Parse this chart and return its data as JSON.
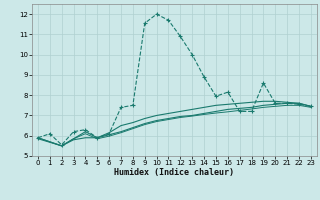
{
  "xlabel": "Humidex (Indice chaleur)",
  "bg_color": "#cce8e8",
  "grid_color": "#b0d0d0",
  "line_color": "#1a7a6e",
  "xlim": [
    -0.5,
    23.5
  ],
  "ylim": [
    5,
    12.5
  ],
  "xticks": [
    0,
    1,
    2,
    3,
    4,
    5,
    6,
    7,
    8,
    9,
    10,
    11,
    12,
    13,
    14,
    15,
    16,
    17,
    18,
    19,
    20,
    21,
    22,
    23
  ],
  "yticks": [
    5,
    6,
    7,
    8,
    9,
    10,
    11,
    12
  ],
  "line1_x": [
    0,
    1,
    2,
    3,
    4,
    5,
    6,
    7,
    8,
    9,
    10,
    11,
    12,
    13,
    14,
    15,
    16,
    17,
    18,
    19,
    20,
    21,
    22,
    23
  ],
  "line1_y": [
    5.9,
    6.1,
    5.55,
    6.2,
    6.3,
    5.9,
    6.1,
    7.4,
    7.5,
    11.55,
    12.0,
    11.7,
    10.9,
    10.0,
    8.9,
    7.95,
    8.15,
    7.2,
    7.2,
    8.6,
    7.6,
    7.6,
    7.55,
    7.45
  ],
  "line2_x": [
    0,
    2,
    3,
    4,
    5,
    6,
    7,
    8,
    9,
    10,
    11,
    12,
    13,
    14,
    15,
    16,
    17,
    18,
    19,
    20,
    21,
    22,
    23
  ],
  "line2_y": [
    5.9,
    5.5,
    5.8,
    5.9,
    5.9,
    6.05,
    6.2,
    6.4,
    6.6,
    6.75,
    6.85,
    6.95,
    7.0,
    7.1,
    7.2,
    7.3,
    7.35,
    7.4,
    7.5,
    7.55,
    7.6,
    7.6,
    7.45
  ],
  "line3_x": [
    0,
    2,
    3,
    4,
    5,
    6,
    7,
    8,
    9,
    10,
    11,
    12,
    13,
    14,
    15,
    16,
    17,
    18,
    19,
    20,
    21,
    22,
    23
  ],
  "line3_y": [
    5.9,
    5.5,
    5.85,
    6.2,
    5.9,
    6.15,
    6.5,
    6.65,
    6.85,
    7.0,
    7.1,
    7.2,
    7.3,
    7.4,
    7.5,
    7.55,
    7.6,
    7.65,
    7.7,
    7.7,
    7.65,
    7.6,
    7.45
  ],
  "line4_x": [
    0,
    2,
    3,
    4,
    5,
    6,
    7,
    8,
    9,
    10,
    11,
    12,
    13,
    14,
    15,
    16,
    17,
    18,
    19,
    20,
    21,
    22,
    23
  ],
  "line4_y": [
    5.85,
    5.5,
    5.85,
    6.1,
    5.85,
    5.98,
    6.15,
    6.35,
    6.55,
    6.7,
    6.8,
    6.9,
    6.97,
    7.05,
    7.12,
    7.18,
    7.25,
    7.32,
    7.4,
    7.45,
    7.5,
    7.5,
    7.4
  ]
}
